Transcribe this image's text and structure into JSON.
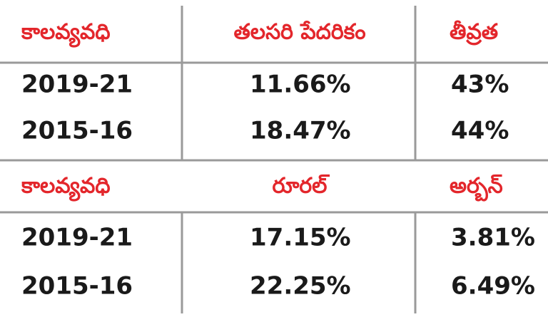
{
  "table1": {
    "header": [
      "కాలవ్యవధి",
      "తలసరి పేదరికం",
      "తీవ్రత"
    ],
    "rows": [
      [
        "2019-21",
        "11.66%",
        "43%"
      ],
      [
        "2015-16",
        "18.47%",
        "44%"
      ]
    ]
  },
  "table2": {
    "header": [
      "కాలవ్యవధి",
      "రూరల్",
      "అర్బన్"
    ],
    "rows": [
      [
        "2019-21",
        "17.15%",
        "3.81%"
      ],
      [
        "2015-16",
        "22.25%",
        "6.49%"
      ]
    ]
  }
}
